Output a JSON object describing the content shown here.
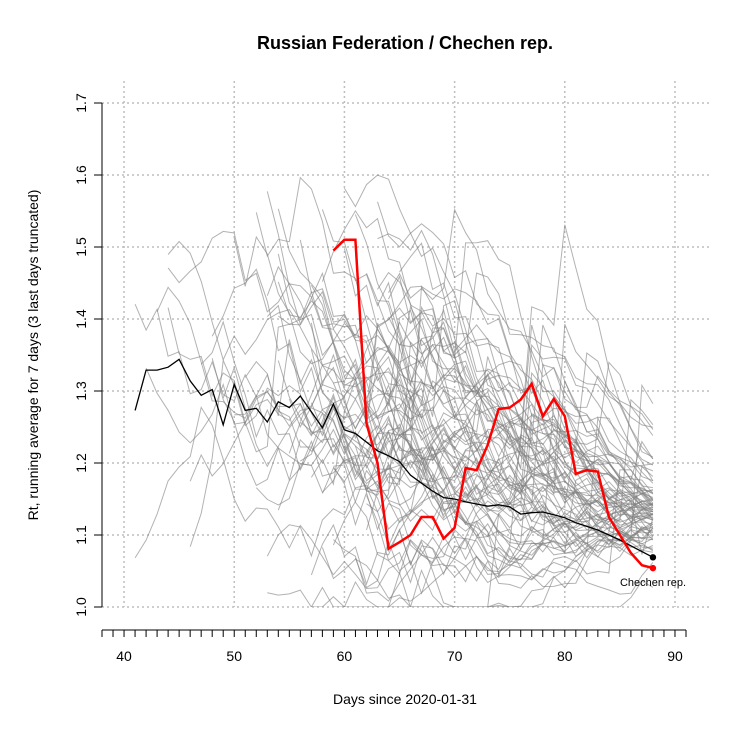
{
  "chart_data": {
    "type": "line",
    "title": "Russian Federation / Chechen rep.",
    "xlabel": "Days since 2020-01-31",
    "ylabel": "Rt, running average for 7 days (3 last days truncated)",
    "xlim": [
      38,
      91
    ],
    "ylim": [
      1.0,
      1.7
    ],
    "x_ticks": [
      40,
      50,
      60,
      70,
      80,
      90
    ],
    "y_ticks": [
      1.0,
      1.1,
      1.2,
      1.3,
      1.4,
      1.5,
      1.6,
      1.7
    ],
    "grid": true,
    "annotation": "Chechen rep.",
    "colors": {
      "highlight": "#ff0000",
      "country": "#000000",
      "regions": "#7f7f7f",
      "grid": "#bebebe"
    },
    "series": [
      {
        "role": "country",
        "x": [
          41,
          42,
          43,
          44,
          45,
          46,
          47,
          48,
          49,
          50,
          51,
          52,
          53,
          54,
          55,
          56,
          57,
          58,
          59,
          60,
          61,
          62,
          63,
          64,
          65,
          66,
          67,
          68,
          69,
          70,
          71,
          72,
          73,
          74,
          75,
          76,
          77,
          78,
          79,
          80,
          81,
          82,
          83,
          84,
          85,
          86,
          87,
          88
        ],
        "y": [
          1.273,
          1.329,
          1.329,
          1.333,
          1.344,
          1.314,
          1.294,
          1.302,
          1.253,
          1.309,
          1.273,
          1.276,
          1.257,
          1.285,
          1.277,
          1.293,
          1.271,
          1.249,
          1.282,
          1.246,
          1.241,
          1.229,
          1.217,
          1.21,
          1.202,
          1.183,
          1.172,
          1.161,
          1.152,
          1.15,
          1.146,
          1.143,
          1.14,
          1.142,
          1.139,
          1.129,
          1.131,
          1.132,
          1.128,
          1.124,
          1.117,
          1.112,
          1.107,
          1.1,
          1.093,
          1.085,
          1.077,
          1.069
        ]
      },
      {
        "name": "Chechen rep.",
        "role": "highlight",
        "x": [
          59,
          60,
          61,
          62,
          63,
          64,
          65,
          66,
          67,
          68,
          69,
          70,
          71,
          72,
          73,
          74,
          75,
          76,
          77,
          78,
          79,
          80,
          81,
          82,
          83,
          84,
          85,
          86,
          87,
          88
        ],
        "y": [
          1.495,
          1.51,
          1.51,
          1.255,
          1.2,
          1.081,
          1.09,
          1.1,
          1.125,
          1.125,
          1.095,
          1.11,
          1.193,
          1.19,
          1.225,
          1.275,
          1.277,
          1.288,
          1.31,
          1.265,
          1.289,
          1.265,
          1.185,
          1.19,
          1.188,
          1.125,
          1.1,
          1.075,
          1.058,
          1.054
        ]
      }
    ]
  }
}
